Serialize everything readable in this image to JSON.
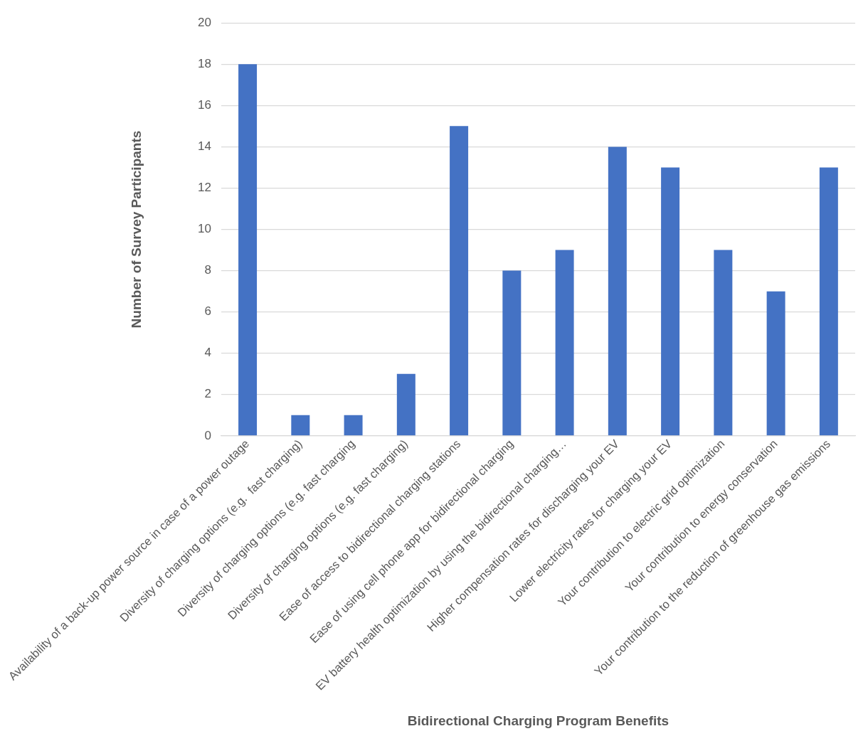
{
  "chart_data": {
    "type": "bar",
    "xlabel": "Bidirectional Charging Program Benefits",
    "ylabel": "Number of Survey Participants",
    "categories": [
      "Availability of a back-up power source in case of a power outage",
      "Diversity of charging options (e.g.  fast charging)",
      "Diversity of charging options (e.g. fast charging",
      "Diversity of charging options (e.g. fast charging)",
      "Ease of access to bidirectional charging stations",
      "Ease of using cell phone app for bidirectional charging",
      "EV battery health optimization by using the bidirectional charging…",
      "Higher compensation rates for discharging your EV",
      "Lower electricity rates for charging your EV",
      "Your contribution to electric grid optimization",
      "Your contribution to energy conservation",
      "Your contribution to the reduction of greenhouse gas emissions"
    ],
    "values": [
      18,
      1,
      1,
      3,
      15,
      8,
      9,
      14,
      13,
      9,
      7,
      13
    ],
    "color": "#4472c4",
    "ylim": [
      0,
      20
    ],
    "yticks": [
      0,
      2,
      4,
      6,
      8,
      10,
      12,
      14,
      16,
      18,
      20
    ],
    "grid": "y"
  }
}
